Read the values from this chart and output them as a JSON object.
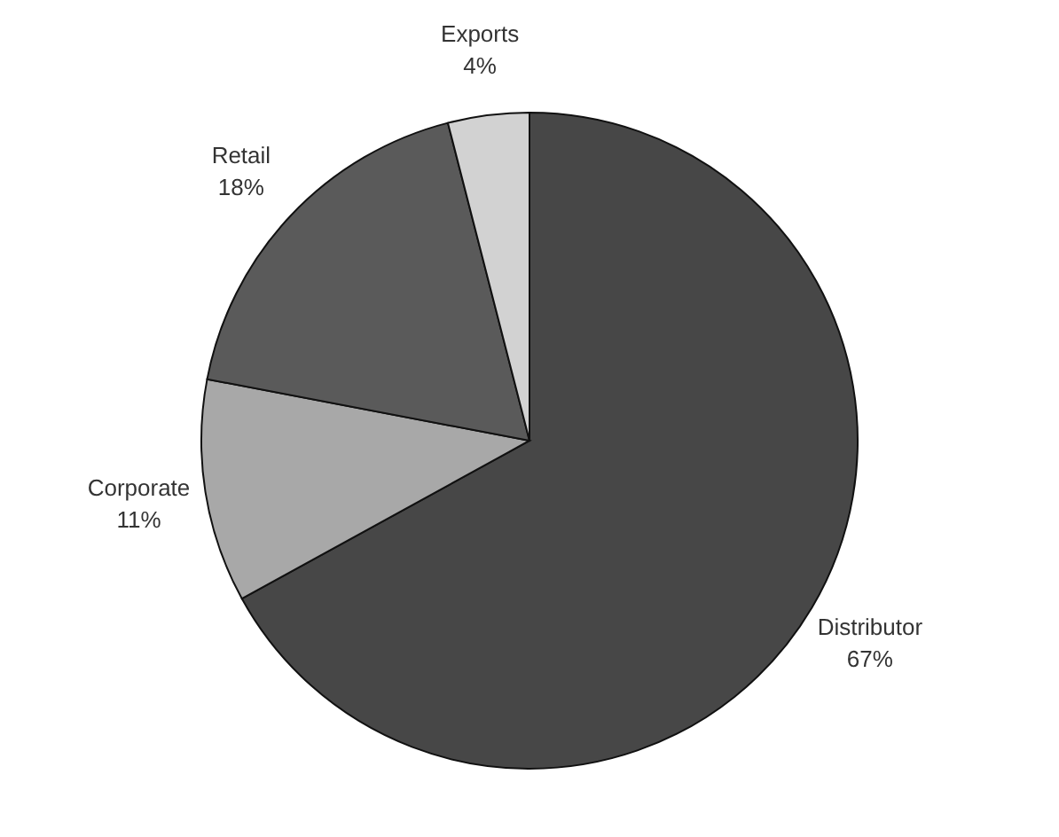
{
  "chart_data": {
    "type": "pie",
    "categories": [
      "Distributor",
      "Corporate",
      "Retail",
      "Exports"
    ],
    "values": [
      67,
      11,
      18,
      4
    ],
    "colors": [
      "#474747",
      "#a8a8a8",
      "#5a5a5a",
      "#d2d2d2"
    ],
    "value_labels": [
      "67%",
      "11%",
      "18%",
      "4%"
    ]
  }
}
